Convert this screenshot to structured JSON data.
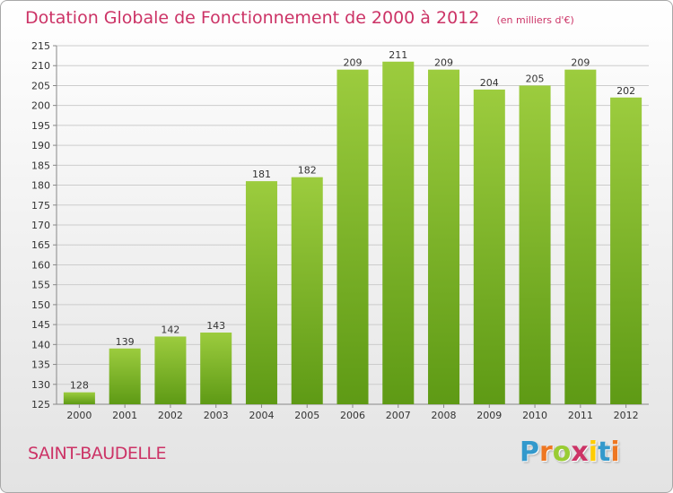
{
  "header": {
    "title": "Dotation Globale de Fonctionnement de 2000 à 2012",
    "unit": "(en milliers d'€)"
  },
  "footer": {
    "commune": "SAINT-BAUDELLE",
    "brand": "Proxiti",
    "brand_colors": [
      "#3399cc",
      "#ee7722",
      "#99cc33",
      "#cc3366",
      "#ffcc00",
      "#3399cc",
      "#ee7722"
    ]
  },
  "colors": {
    "accent": "#cc3366",
    "bar_top": "#9ccc3e",
    "bar_bottom": "#5e9a15",
    "grid": "#cccccc"
  },
  "chart_data": {
    "type": "bar",
    "title": "Dotation Globale de Fonctionnement de 2000 à 2012",
    "xlabel": "",
    "ylabel": "",
    "categories": [
      "2000",
      "2001",
      "2002",
      "2003",
      "2004",
      "2005",
      "2006",
      "2007",
      "2008",
      "2009",
      "2010",
      "2011",
      "2012"
    ],
    "values": [
      128,
      139,
      142,
      143,
      181,
      182,
      209,
      211,
      209,
      204,
      205,
      209,
      202
    ],
    "data_labels": [
      "128",
      "139",
      "142",
      "143",
      "181",
      "182",
      "209",
      "211",
      "209",
      "204",
      "205",
      "209",
      "202"
    ],
    "ylim": [
      125,
      215
    ],
    "yticks": [
      125,
      130,
      135,
      140,
      145,
      150,
      155,
      160,
      165,
      170,
      175,
      180,
      185,
      190,
      195,
      200,
      205,
      210,
      215
    ],
    "grid": true,
    "legend": "none"
  }
}
